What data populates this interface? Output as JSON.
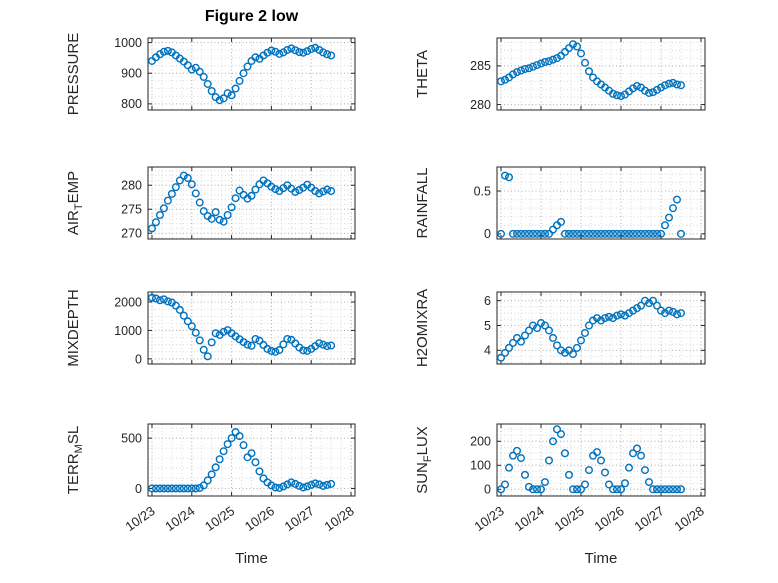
{
  "figure": {
    "title": "Figure 2 low",
    "xlabel": "Time",
    "x_tick_labels": [
      "10/23",
      "10/24",
      "10/25",
      "10/26",
      "10/27",
      "10/28"
    ],
    "x_tick_values": [
      0,
      1,
      2,
      3,
      4,
      5
    ],
    "xlim": [
      -0.1,
      5.1
    ],
    "marker_color": "#0072BD",
    "grid": "on"
  },
  "chart_data": [
    {
      "type": "scatter",
      "name": "pressure",
      "ylabel": "PRESSURE",
      "label_parts": [
        [
          "PRESSURE",
          false
        ]
      ],
      "ylim": [
        780,
        1015
      ],
      "yticks": [
        800,
        900,
        1000
      ],
      "yminor": 25,
      "x_start": 0,
      "x_step": 0.1,
      "y": [
        940,
        952,
        962,
        970,
        973,
        968,
        958,
        948,
        938,
        926,
        912,
        918,
        905,
        888,
        865,
        842,
        822,
        812,
        818,
        835,
        828,
        850,
        875,
        900,
        922,
        940,
        952,
        947,
        958,
        967,
        974,
        970,
        963,
        968,
        976,
        981,
        975,
        969,
        967,
        972,
        979,
        983,
        976,
        968,
        962,
        958
      ]
    },
    {
      "type": "scatter",
      "name": "theta",
      "ylabel": "THETA",
      "label_parts": [
        [
          "THETA",
          false
        ]
      ],
      "ylim": [
        279.3,
        288.6
      ],
      "yticks": [
        280,
        285
      ],
      "yminor": 1,
      "x_start": 0,
      "x_step": 0.1,
      "y": [
        283.0,
        283.2,
        283.5,
        283.9,
        284.2,
        284.4,
        284.6,
        284.7,
        284.9,
        285.1,
        285.3,
        285.5,
        285.6,
        285.8,
        286.0,
        286.3,
        286.8,
        287.3,
        287.8,
        287.5,
        286.6,
        285.4,
        284.3,
        283.5,
        283.0,
        282.6,
        282.2,
        281.8,
        281.4,
        281.2,
        281.1,
        281.3,
        281.7,
        282.1,
        282.4,
        282.2,
        281.8,
        281.5,
        281.6,
        281.9,
        282.2,
        282.5,
        282.7,
        282.8,
        282.6,
        282.5
      ]
    },
    {
      "type": "scatter",
      "name": "air-temp",
      "ylabel": "AIR_TEMP",
      "label_parts": [
        [
          "AIR",
          false
        ],
        [
          "T",
          true
        ],
        [
          "EMP",
          false
        ]
      ],
      "ylim": [
        268.8,
        283.8
      ],
      "yticks": [
        270,
        275,
        280
      ],
      "yminor": 1,
      "x_start": 0,
      "x_step": 0.1,
      "y": [
        271.0,
        272.3,
        273.8,
        275.2,
        276.8,
        278.2,
        279.6,
        281.0,
        282.0,
        281.5,
        280.2,
        278.3,
        276.4,
        274.6,
        273.6,
        273.0,
        274.4,
        272.8,
        272.4,
        273.8,
        275.4,
        277.3,
        278.9,
        278.0,
        277.2,
        277.8,
        279.1,
        280.2,
        281.0,
        280.4,
        279.7,
        279.2,
        278.8,
        279.4,
        280.0,
        279.3,
        278.6,
        279.0,
        279.5,
        280.1,
        279.5,
        278.8,
        278.3,
        278.7,
        279.1,
        278.8
      ]
    },
    {
      "type": "scatter",
      "name": "rainfall",
      "ylabel": "RAINFALL",
      "label_parts": [
        [
          "RAINFALL",
          false
        ]
      ],
      "ylim": [
        -0.06,
        0.78
      ],
      "yticks": [
        0,
        0.5
      ],
      "yminor": 0.1,
      "x_start": 0,
      "x_step": 0.1,
      "y": [
        0,
        0.68,
        0.66,
        0,
        0,
        0,
        0,
        0,
        0,
        0,
        0,
        0,
        0,
        0.05,
        0.1,
        0.14,
        0,
        0,
        0,
        0,
        0,
        0,
        0,
        0,
        0,
        0,
        0,
        0,
        0,
        0,
        0,
        0,
        0,
        0,
        0,
        0,
        0,
        0,
        0,
        0,
        0,
        0.1,
        0.19,
        0.3,
        0.4,
        0
      ]
    },
    {
      "type": "scatter",
      "name": "mixdepth",
      "ylabel": "MIXDEPTH",
      "label_parts": [
        [
          "MIXDEPTH",
          false
        ]
      ],
      "ylim": [
        -180,
        2350
      ],
      "yticks": [
        0,
        1000,
        2000
      ],
      "yminor": 250,
      "x_start": 0,
      "x_step": 0.1,
      "y": [
        2150,
        2120,
        2060,
        2090,
        2020,
        1980,
        1870,
        1720,
        1520,
        1320,
        1150,
        920,
        650,
        320,
        90,
        580,
        900,
        840,
        950,
        1010,
        900,
        790,
        690,
        590,
        500,
        460,
        700,
        640,
        490,
        350,
        280,
        250,
        310,
        510,
        700,
        670,
        540,
        400,
        300,
        280,
        350,
        450,
        550,
        500,
        450,
        470
      ]
    },
    {
      "type": "scatter",
      "name": "h2omixra",
      "ylabel": "H2OMIXRA",
      "label_parts": [
        [
          "H2OMIXRA",
          false
        ]
      ],
      "ylim": [
        3.45,
        6.35
      ],
      "yticks": [
        4,
        5,
        6
      ],
      "yminor": 0.25,
      "x_start": 0,
      "x_step": 0.1,
      "y": [
        3.7,
        3.9,
        4.1,
        4.3,
        4.5,
        4.35,
        4.6,
        4.8,
        5.0,
        4.9,
        5.1,
        5.0,
        4.8,
        4.5,
        4.2,
        4.0,
        3.9,
        4.0,
        3.85,
        4.1,
        4.4,
        4.7,
        5.0,
        5.2,
        5.3,
        5.2,
        5.3,
        5.35,
        5.3,
        5.4,
        5.45,
        5.4,
        5.5,
        5.6,
        5.7,
        5.8,
        6.0,
        5.9,
        6.0,
        5.8,
        5.6,
        5.5,
        5.6,
        5.55,
        5.45,
        5.5
      ]
    },
    {
      "type": "scatter",
      "name": "terr-msl",
      "ylabel": "TERR_MSL",
      "label_parts": [
        [
          "TERR",
          false
        ],
        [
          "M",
          true
        ],
        [
          "SL",
          false
        ]
      ],
      "ylim": [
        -75,
        640
      ],
      "yticks": [
        0,
        500
      ],
      "yminor": 100,
      "x_start": 0,
      "x_step": 0.1,
      "y": [
        0,
        0,
        0,
        0,
        0,
        0,
        0,
        0,
        0,
        0,
        0,
        0,
        5,
        30,
        80,
        140,
        210,
        290,
        370,
        440,
        500,
        560,
        520,
        430,
        310,
        350,
        260,
        170,
        100,
        60,
        30,
        10,
        5,
        20,
        40,
        60,
        45,
        25,
        10,
        20,
        35,
        50,
        40,
        25,
        35,
        45
      ]
    },
    {
      "type": "scatter",
      "name": "sun-flux",
      "ylabel": "SUN_FLUX",
      "label_parts": [
        [
          "SUN",
          false
        ],
        [
          "F",
          true
        ],
        [
          "LUX",
          false
        ]
      ],
      "ylim": [
        -28,
        272
      ],
      "yticks": [
        0,
        100,
        200
      ],
      "yminor": 25,
      "x_start": 0,
      "x_step": 0.1,
      "y": [
        0,
        20,
        90,
        140,
        160,
        130,
        60,
        10,
        0,
        0,
        0,
        30,
        120,
        200,
        250,
        230,
        150,
        60,
        0,
        0,
        0,
        20,
        80,
        140,
        155,
        120,
        70,
        20,
        0,
        0,
        0,
        25,
        90,
        150,
        170,
        140,
        80,
        30,
        0,
        0,
        0,
        0,
        0,
        0,
        0,
        0
      ]
    }
  ]
}
